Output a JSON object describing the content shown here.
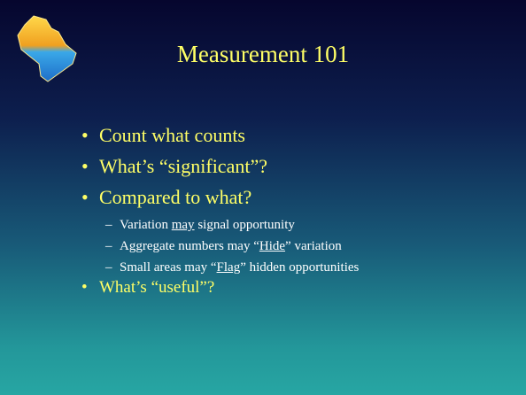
{
  "title": "Measurement 101",
  "bullet": "•",
  "sub_bullet": "–",
  "bullets": [
    {
      "text": "Count what counts"
    },
    {
      "text": "What’s “significant”?"
    },
    {
      "text": "Compared to what?",
      "subs": [
        {
          "parts": [
            {
              "text": "Variation "
            },
            {
              "text": "may",
              "underline": true
            },
            {
              "text": " signal opportunity"
            }
          ]
        },
        {
          "parts": [
            {
              "text": "Aggregate numbers may “"
            },
            {
              "text": "Hide",
              "underline": true
            },
            {
              "text": "” variation"
            }
          ]
        },
        {
          "parts": [
            {
              "text": "Small areas may “"
            },
            {
              "text": "Flag",
              "underline": true
            },
            {
              "text": "” hidden opportunities"
            }
          ]
        }
      ]
    },
    {
      "text": "What’s “useful”?"
    }
  ]
}
